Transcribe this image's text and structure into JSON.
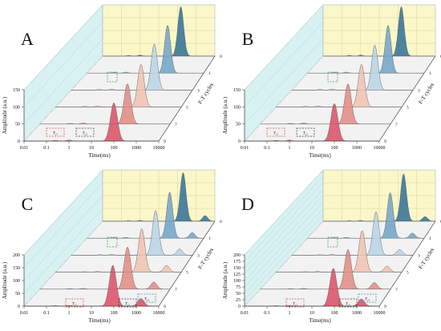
{
  "chart_data": [
    {
      "type": "area",
      "panel_label": "A",
      "title": "",
      "xlabel": "Time(ms)",
      "ylabel": "Amplitude (a.u.)",
      "zlabel": "F-T cycles",
      "x_scale": "log",
      "x_ticks": [
        "0.01",
        "0.1",
        "1",
        "10",
        "100",
        "1000",
        "10000"
      ],
      "y_ticks": [
        0,
        50,
        100,
        150
      ],
      "ylim": [
        0,
        150
      ],
      "z_ticks": [
        "0",
        "1",
        "3",
        "5",
        "7",
        "9"
      ],
      "colors": [
        "#2f6f96",
        "#6fa3c8",
        "#b8d3e6",
        "#f0c2b0",
        "#e28a82",
        "#d94f63"
      ],
      "series": [
        {
          "name": "0",
          "peaks": [
            {
              "t": 150,
              "amp": 145
            }
          ]
        },
        {
          "name": "1",
          "peaks": [
            {
              "t": 140,
              "amp": 140
            }
          ]
        },
        {
          "name": "3",
          "peaks": [
            {
              "t": 130,
              "amp": 135
            }
          ]
        },
        {
          "name": "5",
          "peaks": [
            {
              "t": 120,
              "amp": 125
            }
          ]
        },
        {
          "name": "7",
          "peaks": [
            {
              "t": 110,
              "amp": 118
            }
          ]
        },
        {
          "name": "9",
          "peaks": [
            {
              "t": 100,
              "amp": 112
            }
          ]
        }
      ],
      "annotations": [
        "T₂₁",
        "T₂₂"
      ]
    },
    {
      "type": "area",
      "panel_label": "B",
      "title": "",
      "xlabel": "Time(ms)",
      "ylabel": "Amplitude (a.u.)",
      "zlabel": "F-T cycles",
      "x_scale": "log",
      "x_ticks": [
        "0.01",
        "0.1",
        "1",
        "10",
        "100",
        "1000",
        "10000"
      ],
      "y_ticks": [
        0,
        50,
        100,
        150
      ],
      "ylim": [
        0,
        150
      ],
      "z_ticks": [
        "0",
        "1",
        "3",
        "5",
        "7",
        "9"
      ],
      "colors": [
        "#2f6f96",
        "#6fa3c8",
        "#b8d3e6",
        "#f0c2b0",
        "#e28a82",
        "#d94f63"
      ],
      "series": [
        {
          "name": "0",
          "peaks": [
            {
              "t": 150,
              "amp": 145
            }
          ]
        },
        {
          "name": "1",
          "peaks": [
            {
              "t": 140,
              "amp": 140
            }
          ]
        },
        {
          "name": "3",
          "peaks": [
            {
              "t": 130,
              "amp": 132
            }
          ]
        },
        {
          "name": "5",
          "peaks": [
            {
              "t": 120,
              "amp": 125
            }
          ]
        },
        {
          "name": "7",
          "peaks": [
            {
              "t": 110,
              "amp": 118
            }
          ]
        },
        {
          "name": "9",
          "peaks": [
            {
              "t": 100,
              "amp": 110
            }
          ]
        }
      ],
      "annotations": [
        "T₂₁",
        "T₂₂"
      ]
    },
    {
      "type": "area",
      "panel_label": "C",
      "title": "",
      "xlabel": "Time(ms)",
      "ylabel": "Amplitude (a.u.)",
      "zlabel": "F-T cycles",
      "x_scale": "log",
      "x_ticks": [
        "0.01",
        "0.1",
        "1",
        "10",
        "100",
        "1000",
        "10000"
      ],
      "y_ticks": [
        0,
        50,
        100,
        150,
        200
      ],
      "ylim": [
        0,
        200
      ],
      "z_ticks": [
        "0",
        "1",
        "3",
        "5",
        "7",
        "9"
      ],
      "colors": [
        "#2f6f96",
        "#6fa3c8",
        "#b8d3e6",
        "#f0c2b0",
        "#e28a82",
        "#d94f63"
      ],
      "series": [
        {
          "name": "0",
          "peaks": [
            {
              "t": 200,
              "amp": 190
            },
            {
              "t": 3000,
              "amp": 22
            }
          ]
        },
        {
          "name": "1",
          "peaks": [
            {
              "t": 180,
              "amp": 180
            },
            {
              "t": 2600,
              "amp": 22
            }
          ]
        },
        {
          "name": "3",
          "peaks": [
            {
              "t": 150,
              "amp": 175
            },
            {
              "t": 2300,
              "amp": 24
            }
          ]
        },
        {
          "name": "5",
          "peaks": [
            {
              "t": 130,
              "amp": 170
            },
            {
              "t": 2000,
              "amp": 26
            }
          ]
        },
        {
          "name": "7",
          "peaks": [
            {
              "t": 110,
              "amp": 165
            },
            {
              "t": 1800,
              "amp": 28
            }
          ]
        },
        {
          "name": "9",
          "peaks": [
            {
              "t": 90,
              "amp": 160
            },
            {
              "t": 1600,
              "amp": 30
            }
          ]
        }
      ],
      "annotations": [
        "T₂₁",
        "T₂₂",
        "T₂₃"
      ]
    },
    {
      "type": "area",
      "panel_label": "D",
      "title": "",
      "xlabel": "Time(ms)",
      "ylabel": "Amplitude (a.u.)",
      "zlabel": "F-T cycles",
      "x_scale": "log",
      "x_ticks": [
        "0.01",
        "0.1",
        "1",
        "10",
        "100",
        "1000",
        "10000"
      ],
      "y_ticks": [
        0,
        25,
        50,
        75,
        100,
        125,
        150,
        175,
        200
      ],
      "ylim": [
        0,
        200
      ],
      "z_ticks": [
        "0",
        "1",
        "3",
        "5",
        "7",
        "9"
      ],
      "colors": [
        "#2f6f96",
        "#6fa3c8",
        "#b8d3e6",
        "#f0c2b0",
        "#e28a82",
        "#d94f63"
      ],
      "series": [
        {
          "name": "0",
          "peaks": [
            {
              "t": 200,
              "amp": 185
            },
            {
              "t": 2800,
              "amp": 18
            }
          ]
        },
        {
          "name": "1",
          "peaks": [
            {
              "t": 180,
              "amp": 178
            },
            {
              "t": 2500,
              "amp": 20
            }
          ]
        },
        {
          "name": "3",
          "peaks": [
            {
              "t": 150,
              "amp": 170
            },
            {
              "t": 2200,
              "amp": 22
            }
          ]
        },
        {
          "name": "5",
          "peaks": [
            {
              "t": 130,
              "amp": 162
            },
            {
              "t": 2000,
              "amp": 24
            }
          ]
        },
        {
          "name": "7",
          "peaks": [
            {
              "t": 110,
              "amp": 155
            },
            {
              "t": 1800,
              "amp": 26
            }
          ]
        },
        {
          "name": "9",
          "peaks": [
            {
              "t": 90,
              "amp": 148
            },
            {
              "t": 1600,
              "amp": 28
            }
          ]
        }
      ],
      "annotations": [
        "T₂₁",
        "T₂₂",
        "T₂₃"
      ]
    }
  ]
}
